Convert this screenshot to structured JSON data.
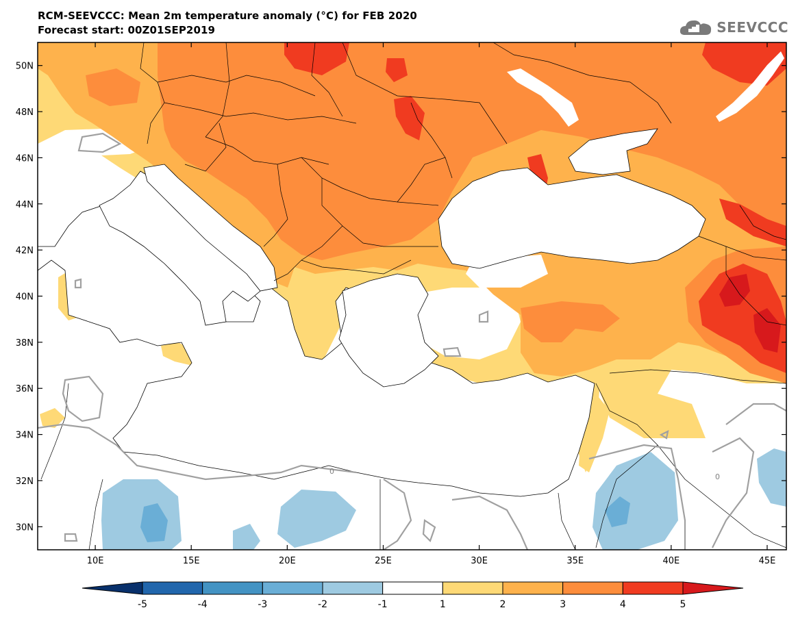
{
  "header": {
    "title_line1": "RCM-SEEVCCC: Mean 2m temperature anomaly (°C) for FEB 2020",
    "title_line2": "Forecast start: 00Z01SEP2019"
  },
  "logo": {
    "text": "SEEVCCC",
    "icon": "cloud-logo-icon"
  },
  "map": {
    "lon_range": [
      7,
      46
    ],
    "lat_range": [
      29,
      51
    ],
    "lat_ticks": [
      {
        "value": 50,
        "label": "50N"
      },
      {
        "value": 48,
        "label": "48N"
      },
      {
        "value": 46,
        "label": "46N"
      },
      {
        "value": 44,
        "label": "44N"
      },
      {
        "value": 42,
        "label": "42N"
      },
      {
        "value": 40,
        "label": "40N"
      },
      {
        "value": 38,
        "label": "38N"
      },
      {
        "value": 36,
        "label": "36N"
      },
      {
        "value": 34,
        "label": "34N"
      },
      {
        "value": 32,
        "label": "32N"
      },
      {
        "value": 30,
        "label": "30N"
      }
    ],
    "lon_ticks": [
      {
        "value": 10,
        "label": "10E"
      },
      {
        "value": 15,
        "label": "15E"
      },
      {
        "value": 20,
        "label": "20E"
      },
      {
        "value": 25,
        "label": "25E"
      },
      {
        "value": 30,
        "label": "30E"
      },
      {
        "value": 35,
        "label": "35E"
      },
      {
        "value": 40,
        "label": "40E"
      },
      {
        "value": 45,
        "label": "45E"
      }
    ],
    "contour_label": "0"
  },
  "colorbar": {
    "labels": [
      "-5",
      "-4",
      "-3",
      "-2",
      "-1",
      "1",
      "2",
      "3",
      "4",
      "5"
    ],
    "colors": [
      "#08306b",
      "#2166ac",
      "#4393c3",
      "#6aaed6",
      "#9ecae1",
      "#ffffff",
      "#fed976",
      "#feb24c",
      "#fd8d3c",
      "#f03b20",
      "#bd0026"
    ],
    "low_color": "#08306b",
    "high_color": "#d7191c"
  }
}
